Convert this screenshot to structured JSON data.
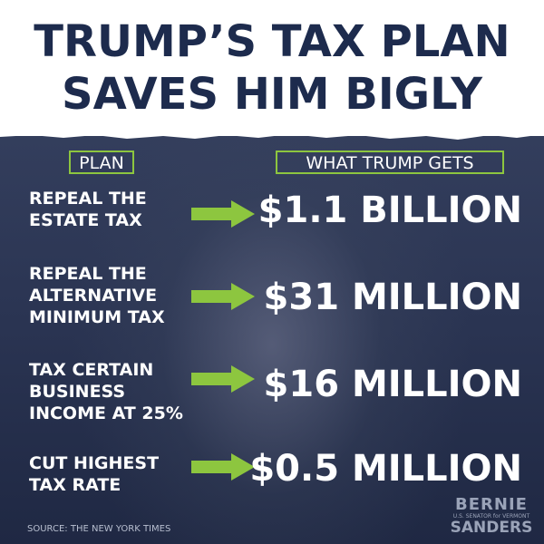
{
  "header": {
    "title_line_1": "TRUMP’S TAX PLAN",
    "title_line_2": "SAVES HIM BIGLY"
  },
  "columns": {
    "plan": "PLAN",
    "gets": "WHAT TRUMP GETS"
  },
  "rows": [
    {
      "plan": "REPEAL THE\nESTATE TAX",
      "amount": "$1.1 BILLION"
    },
    {
      "plan": "REPEAL THE\nALTERNATIVE\nMINIMUM TAX",
      "amount": "$31 MILLION"
    },
    {
      "plan": "TAX CERTAIN\nBUSINESS\nINCOME AT 25%",
      "amount": "$16 MILLION"
    },
    {
      "plan": "CUT HIGHEST\nTAX RATE",
      "amount": "$0.5 MILLION"
    }
  ],
  "source": "SOURCE: THE NEW YORK TIMES",
  "logo": {
    "top": "BERNIE",
    "middle": "U.S. SENATOR for VERMONT",
    "bottom": "SANDERS"
  },
  "colors": {
    "accent": "#8dc63f",
    "title": "#1d2b4d",
    "background": "#2b3550"
  },
  "icons": {
    "arrow": "right-arrow-icon"
  }
}
